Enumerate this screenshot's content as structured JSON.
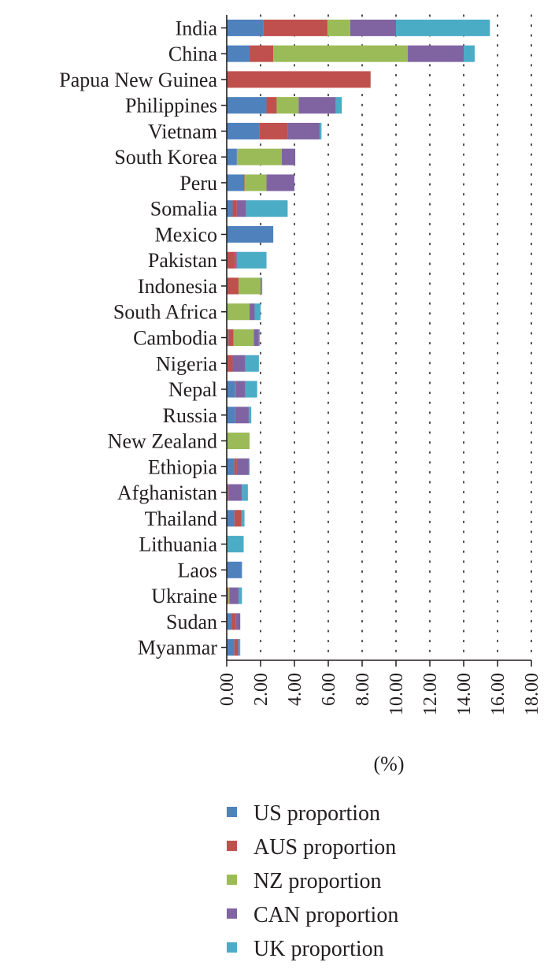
{
  "chart_data": {
    "type": "bar",
    "orientation": "horizontal",
    "stacked": true,
    "title": "",
    "xlabel": "(%)",
    "ylabel": "",
    "xlim": [
      0,
      18
    ],
    "x_ticks": [
      "0.00",
      "2.00",
      "4.00",
      "6.00",
      "8.00",
      "10.00",
      "12.00",
      "14.00",
      "16.00",
      "18.00"
    ],
    "grid": "vertical dotted",
    "legend_position": "bottom",
    "categories": [
      "India",
      "China",
      "Papua New Guinea",
      "Philippines",
      "Vietnam",
      "South Korea",
      "Peru",
      "Somalia",
      "Mexico",
      "Pakistan",
      "Indonesia",
      "South Africa",
      "Cambodia",
      "Nigeria",
      "Nepal",
      "Russia",
      "New Zealand",
      "Ethiopia",
      "Afghanistan",
      "Thailand",
      "Lithuania",
      "Laos",
      "Ukraine",
      "Sudan",
      "Myanmar"
    ],
    "series": [
      {
        "name": "US proportion",
        "color": "#4f81bd",
        "values": [
          2.15,
          1.35,
          0.0,
          2.35,
          1.95,
          0.6,
          1.0,
          0.35,
          2.75,
          0.05,
          0.05,
          0.0,
          0.1,
          0.05,
          0.5,
          0.5,
          0.0,
          0.45,
          0.05,
          0.45,
          0.0,
          0.9,
          0.05,
          0.3,
          0.45
        ]
      },
      {
        "name": "AUS proportion",
        "color": "#c0504d",
        "values": [
          3.8,
          1.4,
          8.5,
          0.6,
          1.65,
          0.0,
          0.05,
          0.25,
          0.0,
          0.45,
          0.65,
          0.0,
          0.3,
          0.3,
          0.05,
          0.0,
          0.0,
          0.15,
          0.05,
          0.4,
          0.0,
          0.0,
          0.05,
          0.25,
          0.2
        ]
      },
      {
        "name": "NZ proportion",
        "color": "#9bbb59",
        "values": [
          1.35,
          7.95,
          0.0,
          1.3,
          0.0,
          2.65,
          1.3,
          0.0,
          0.0,
          0.0,
          1.3,
          1.35,
          1.2,
          0.0,
          0.0,
          0.0,
          1.35,
          0.0,
          0.0,
          0.0,
          0.05,
          0.0,
          0.05,
          0.0,
          0.0
        ]
      },
      {
        "name": "CAN proportion",
        "color": "#8064a2",
        "values": [
          2.7,
          3.3,
          0.0,
          2.2,
          1.9,
          0.8,
          1.65,
          0.55,
          0.0,
          0.1,
          0.05,
          0.3,
          0.3,
          0.75,
          0.55,
          0.8,
          0.0,
          0.7,
          0.8,
          0.05,
          0.0,
          0.0,
          0.55,
          0.25,
          0.05
        ]
      },
      {
        "name": "UK proportion",
        "color": "#4bacc6",
        "values": [
          5.55,
          0.65,
          0.0,
          0.35,
          0.1,
          0.0,
          0.0,
          2.45,
          0.0,
          1.75,
          0.05,
          0.35,
          0.05,
          0.8,
          0.7,
          0.15,
          0.0,
          0.05,
          0.35,
          0.15,
          0.95,
          0.0,
          0.2,
          0.0,
          0.1
        ]
      }
    ]
  }
}
